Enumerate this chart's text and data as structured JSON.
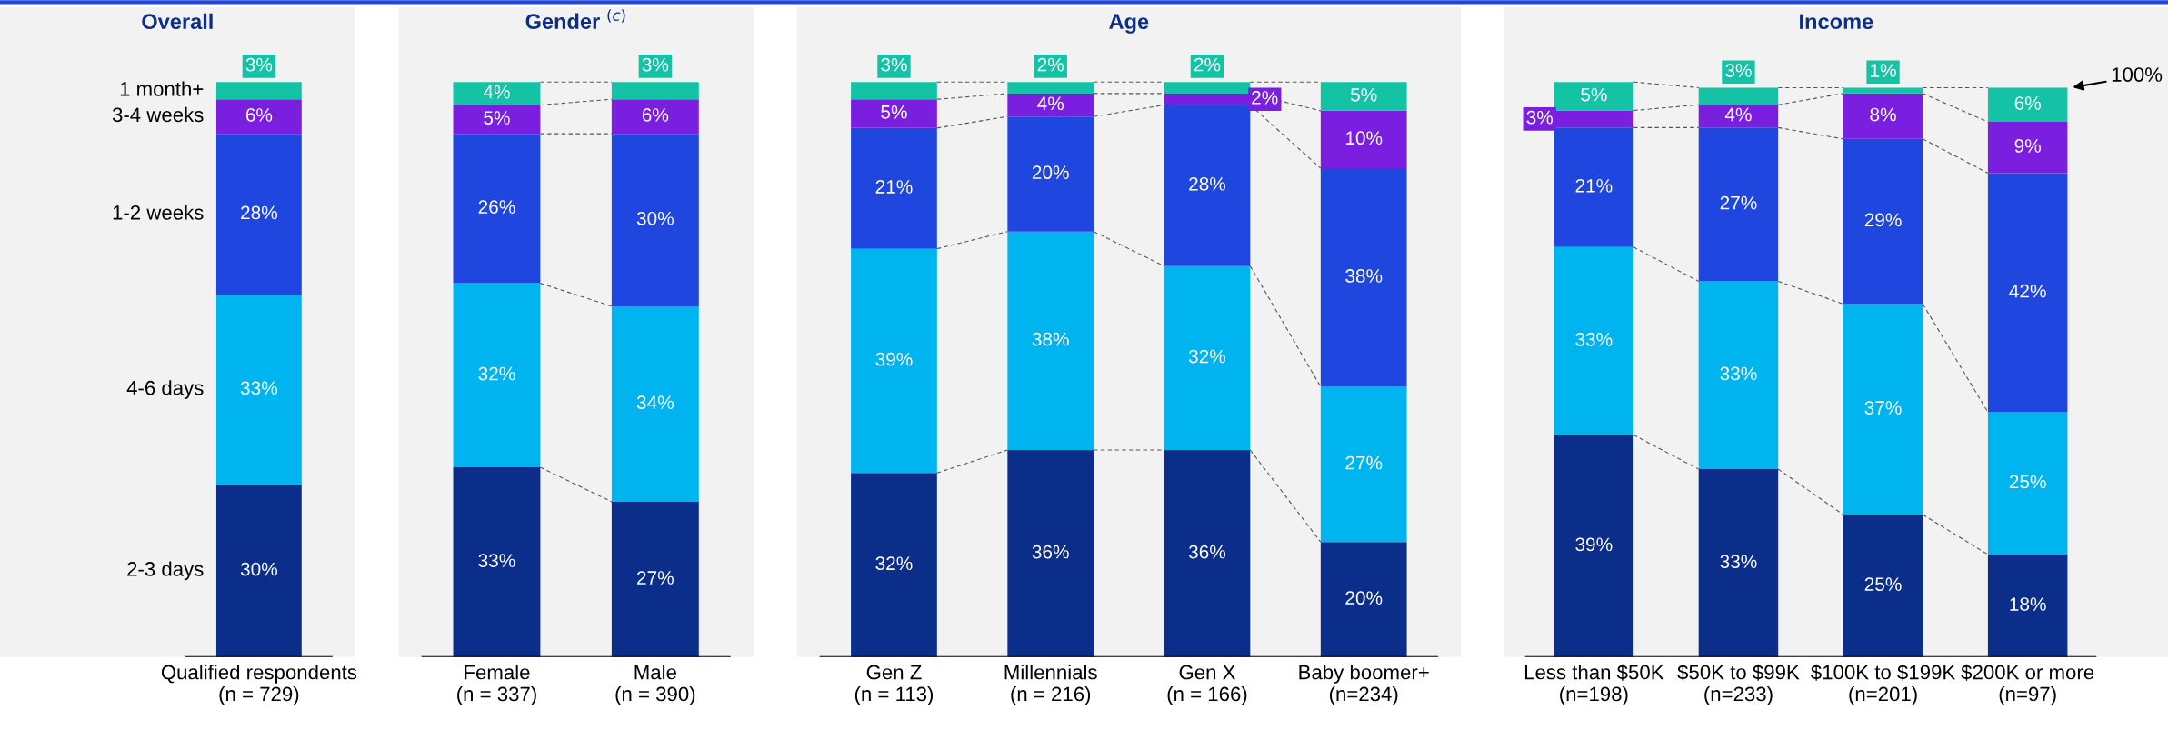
{
  "chart_data": [
    {
      "type": "bar",
      "title": "Overall",
      "stacked": true,
      "legend": false,
      "categories": [
        "Qualified respondents\n(n = 729)"
      ],
      "series": [
        {
          "name": "2-3 days",
          "color": "#0b2e8a",
          "values": [
            30
          ],
          "value_labels": [
            "30%"
          ]
        },
        {
          "name": "4-6 days",
          "color": "#00b4ef",
          "values": [
            33
          ],
          "value_labels": [
            "33%"
          ]
        },
        {
          "name": "1-2 weeks",
          "color": "#1f47e0",
          "values": [
            28
          ],
          "value_labels": [
            "28%"
          ]
        },
        {
          "name": "3-4 weeks",
          "color": "#7a1fe0",
          "values": [
            6
          ],
          "value_labels": [
            "6%"
          ]
        },
        {
          "name": "1 month+",
          "color": "#14c2a5",
          "values": [
            3
          ],
          "value_labels": [
            "3%"
          ]
        }
      ]
    },
    {
      "type": "bar",
      "title": "Gender $^{(c)}$",
      "stacked": true,
      "legend": false,
      "categories": [
        "Female\n(n = 337)",
        "Male\n(n = 390)"
      ],
      "series": [
        {
          "color": "#0b2e8a",
          "values": [
            33,
            27
          ],
          "value_labels": [
            "33%",
            "27%"
          ]
        },
        {
          "color": "#00b4ef",
          "values": [
            32,
            34
          ],
          "value_labels": [
            "32%",
            "34%"
          ]
        },
        {
          "color": "#1f47e0",
          "values": [
            26,
            30
          ],
          "value_labels": [
            "26%",
            "30%"
          ]
        },
        {
          "color": "#7a1fe0",
          "values": [
            5,
            6
          ],
          "value_labels": [
            "5%",
            "6%"
          ]
        },
        {
          "color": "#14c2a5",
          "values": [
            4,
            3
          ],
          "value_labels": [
            "4%",
            "3%"
          ]
        }
      ]
    },
    {
      "type": "bar",
      "title": "Age",
      "stacked": true,
      "legend": false,
      "categories": [
        "Gen Z\n(n = 113)",
        "Millennials\n(n = 216)",
        "Gen X\n(n = 166)",
        "Baby boomer+\n(n=234)"
      ],
      "series": [
        {
          "color": "#0b2e8a",
          "values": [
            32,
            36,
            36,
            20
          ],
          "value_labels": [
            "32%",
            "36%",
            "36%",
            "20%"
          ]
        },
        {
          "color": "#00b4ef",
          "values": [
            39,
            38,
            32,
            27
          ],
          "value_labels": [
            "39%",
            "38%",
            "32%",
            "27%"
          ]
        },
        {
          "color": "#1f47e0",
          "values": [
            21,
            20,
            28,
            38
          ],
          "value_labels": [
            "21%",
            "20%",
            "28%",
            "38%"
          ]
        },
        {
          "color": "#7a1fe0",
          "values": [
            5,
            4,
            2,
            10
          ],
          "value_labels": [
            "5%",
            "4%",
            "2%",
            "10%"
          ]
        },
        {
          "color": "#14c2a5",
          "values": [
            3,
            2,
            2,
            5
          ],
          "value_labels": [
            "3%",
            "2%",
            "2%",
            "5%"
          ]
        }
      ]
    },
    {
      "type": "bar",
      "title": "Income",
      "stacked": true,
      "legend": false,
      "categories": [
        "Less than $50K\n(n=198)",
        "$50K to $99K\n(n=233)",
        "$100K to $199K\n(n=201)",
        "$200K or more\n(n=97)"
      ],
      "series": [
        {
          "color": "#0b2e8a",
          "values": [
            39,
            33,
            25,
            18
          ],
          "value_labels": [
            "39%",
            "33%",
            "25%",
            "18%"
          ]
        },
        {
          "color": "#00b4ef",
          "values": [
            33,
            33,
            37,
            25
          ],
          "value_labels": [
            "33%",
            "33%",
            "37%",
            "25%"
          ]
        },
        {
          "color": "#1f47e0",
          "values": [
            21,
            27,
            29,
            42
          ],
          "value_labels": [
            "21%",
            "27%",
            "29%",
            "42%"
          ]
        },
        {
          "color": "#7a1fe0",
          "values": [
            3,
            4,
            8,
            9
          ],
          "value_labels": [
            "3%",
            "4%",
            "8%",
            "9%"
          ]
        },
        {
          "color": "#14c2a5",
          "values": [
            5,
            3,
            1,
            6
          ],
          "value_labels": [
            "5%",
            "3%",
            "1%",
            "6%"
          ]
        }
      ],
      "annotations": [
        "100%"
      ]
    }
  ]
}
